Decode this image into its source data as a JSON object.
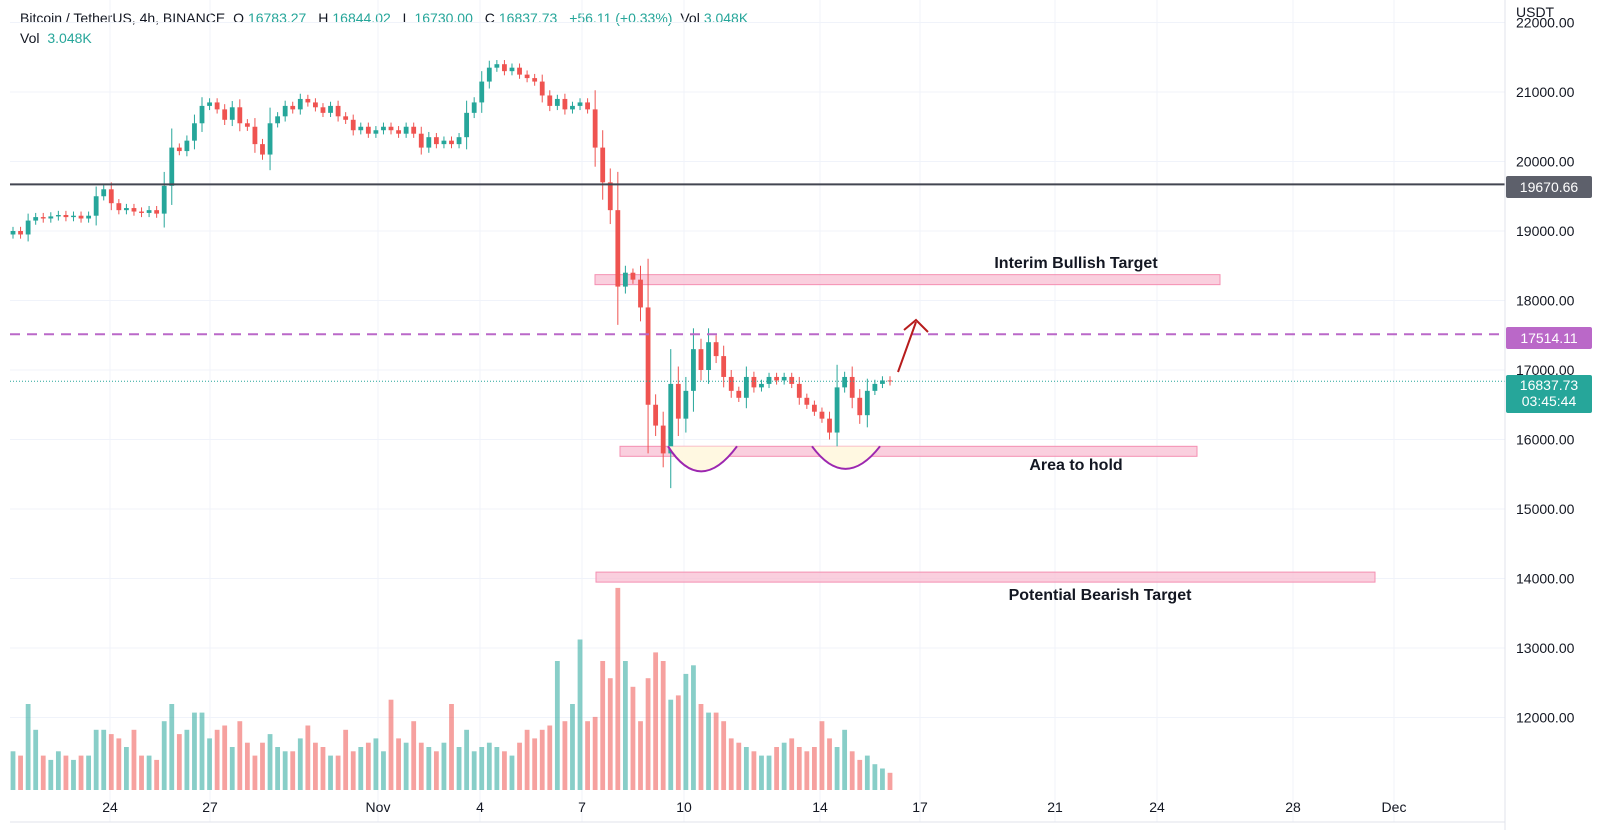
{
  "header": {
    "symbol": "Bitcoin / TetherUS, 4h, BINANCE",
    "o_label": "O",
    "o": "16783.27",
    "h_label": "H",
    "h": "16844.02",
    "l_label": "L",
    "l": "16730.00",
    "c_label": "C",
    "c": "16837.73",
    "change": "+56.11 (+0.33%)",
    "vol_label": "Vol",
    "vol": "3.048K",
    "vol2_label": "Vol",
    "vol2": "3.048K"
  },
  "axis": {
    "currency": "USDT",
    "price_ticks": [
      "22000.00",
      "21000.00",
      "20000.00",
      "19000.00",
      "18000.00",
      "17000.00",
      "16000.00",
      "15000.00",
      "14000.00",
      "13000.00",
      "12000.00"
    ],
    "date_ticks": [
      "24",
      "27",
      "Nov",
      "4",
      "7",
      "10",
      "14",
      "17",
      "21",
      "24",
      "28",
      "Dec"
    ]
  },
  "price_tags": {
    "resistance": "19670.66",
    "dashed": "17514.11",
    "last": "16837.73",
    "countdown": "03:45:44"
  },
  "annotations": {
    "bullish": "Interim Bullish Target",
    "hold": "Area to hold",
    "bearish": "Potential Bearish Target"
  },
  "colors": {
    "up": "#26a69a",
    "down": "#ef5350",
    "zone": "#f8bbd0",
    "dashed": "#ba68c8",
    "resistance": "#434651",
    "arrow": "#b71c1c"
  },
  "chart_data": {
    "type": "candlestick",
    "x_ticks": [
      "24",
      "27",
      "Nov",
      "4",
      "7",
      "10",
      "14",
      "17",
      "21",
      "24",
      "28",
      "Dec"
    ],
    "y_ticks": [
      22000,
      21000,
      20000,
      19000,
      18000,
      17000,
      16000,
      15000,
      14000,
      13000,
      12000
    ],
    "horizontal_levels": [
      19670.66,
      17514.11,
      16837.73
    ],
    "zones": [
      {
        "name": "Interim Bullish Target",
        "value": 18300
      },
      {
        "name": "Area to hold",
        "value": 15830
      },
      {
        "name": "Potential Bearish Target",
        "value": 14020
      }
    ],
    "closes": [
      19000,
      18950,
      19150,
      19200,
      19180,
      19210,
      19230,
      19200,
      19220,
      19180,
      19220,
      19500,
      19600,
      19400,
      19300,
      19330,
      19280,
      19260,
      19300,
      19250,
      19650,
      20200,
      20150,
      20300,
      20550,
      20800,
      20850,
      20750,
      20600,
      20780,
      20550,
      20500,
      20250,
      20100,
      20550,
      20650,
      20800,
      20750,
      20900,
      20850,
      20780,
      20700,
      20800,
      20650,
      20600,
      20450,
      20500,
      20400,
      20450,
      20500,
      20450,
      20400,
      20500,
      20400,
      20200,
      20350,
      20250,
      20300,
      20250,
      20350,
      20700,
      20850,
      21150,
      21350,
      21400,
      21300,
      21350,
      21250,
      21200,
      21150,
      20950,
      20800,
      20900,
      20750,
      20800,
      20850,
      20750,
      20200,
      19700,
      19300,
      18200,
      18400,
      18300,
      17900,
      16500,
      16200,
      15800,
      16800,
      16300,
      16700,
      17300,
      17000,
      17400,
      17200,
      16900,
      16700,
      16600,
      16900,
      16750,
      16800,
      16900,
      16850,
      16900,
      16800,
      16600,
      16500,
      16400,
      16300,
      16100,
      16750,
      16900,
      16600,
      16350,
      16700,
      16800,
      16850,
      16837
    ],
    "volumes": [
      9,
      8,
      20,
      14,
      8,
      7,
      9,
      8,
      7,
      8,
      8,
      14,
      14,
      13,
      12,
      10,
      14,
      8,
      8,
      7,
      16,
      20,
      13,
      14,
      18,
      18,
      12,
      14,
      15,
      10,
      16,
      11,
      8,
      11,
      13,
      10,
      9,
      9,
      12,
      15,
      11,
      10,
      8,
      8,
      14,
      9,
      10,
      11,
      12,
      9,
      21,
      12,
      11,
      16,
      11,
      10,
      9,
      11,
      20,
      10,
      14,
      9,
      10,
      11,
      10,
      9,
      8,
      11,
      14,
      12,
      14,
      15,
      30,
      16,
      20,
      35,
      16,
      17,
      30,
      26,
      47,
      30,
      24,
      16,
      26,
      32,
      30,
      21,
      22,
      27,
      29,
      20,
      18,
      18,
      16,
      12,
      11,
      10,
      9,
      8,
      8,
      10,
      11,
      12,
      10,
      9,
      10,
      16,
      12,
      10,
      14,
      9,
      7,
      8,
      6,
      5,
      4
    ]
  }
}
